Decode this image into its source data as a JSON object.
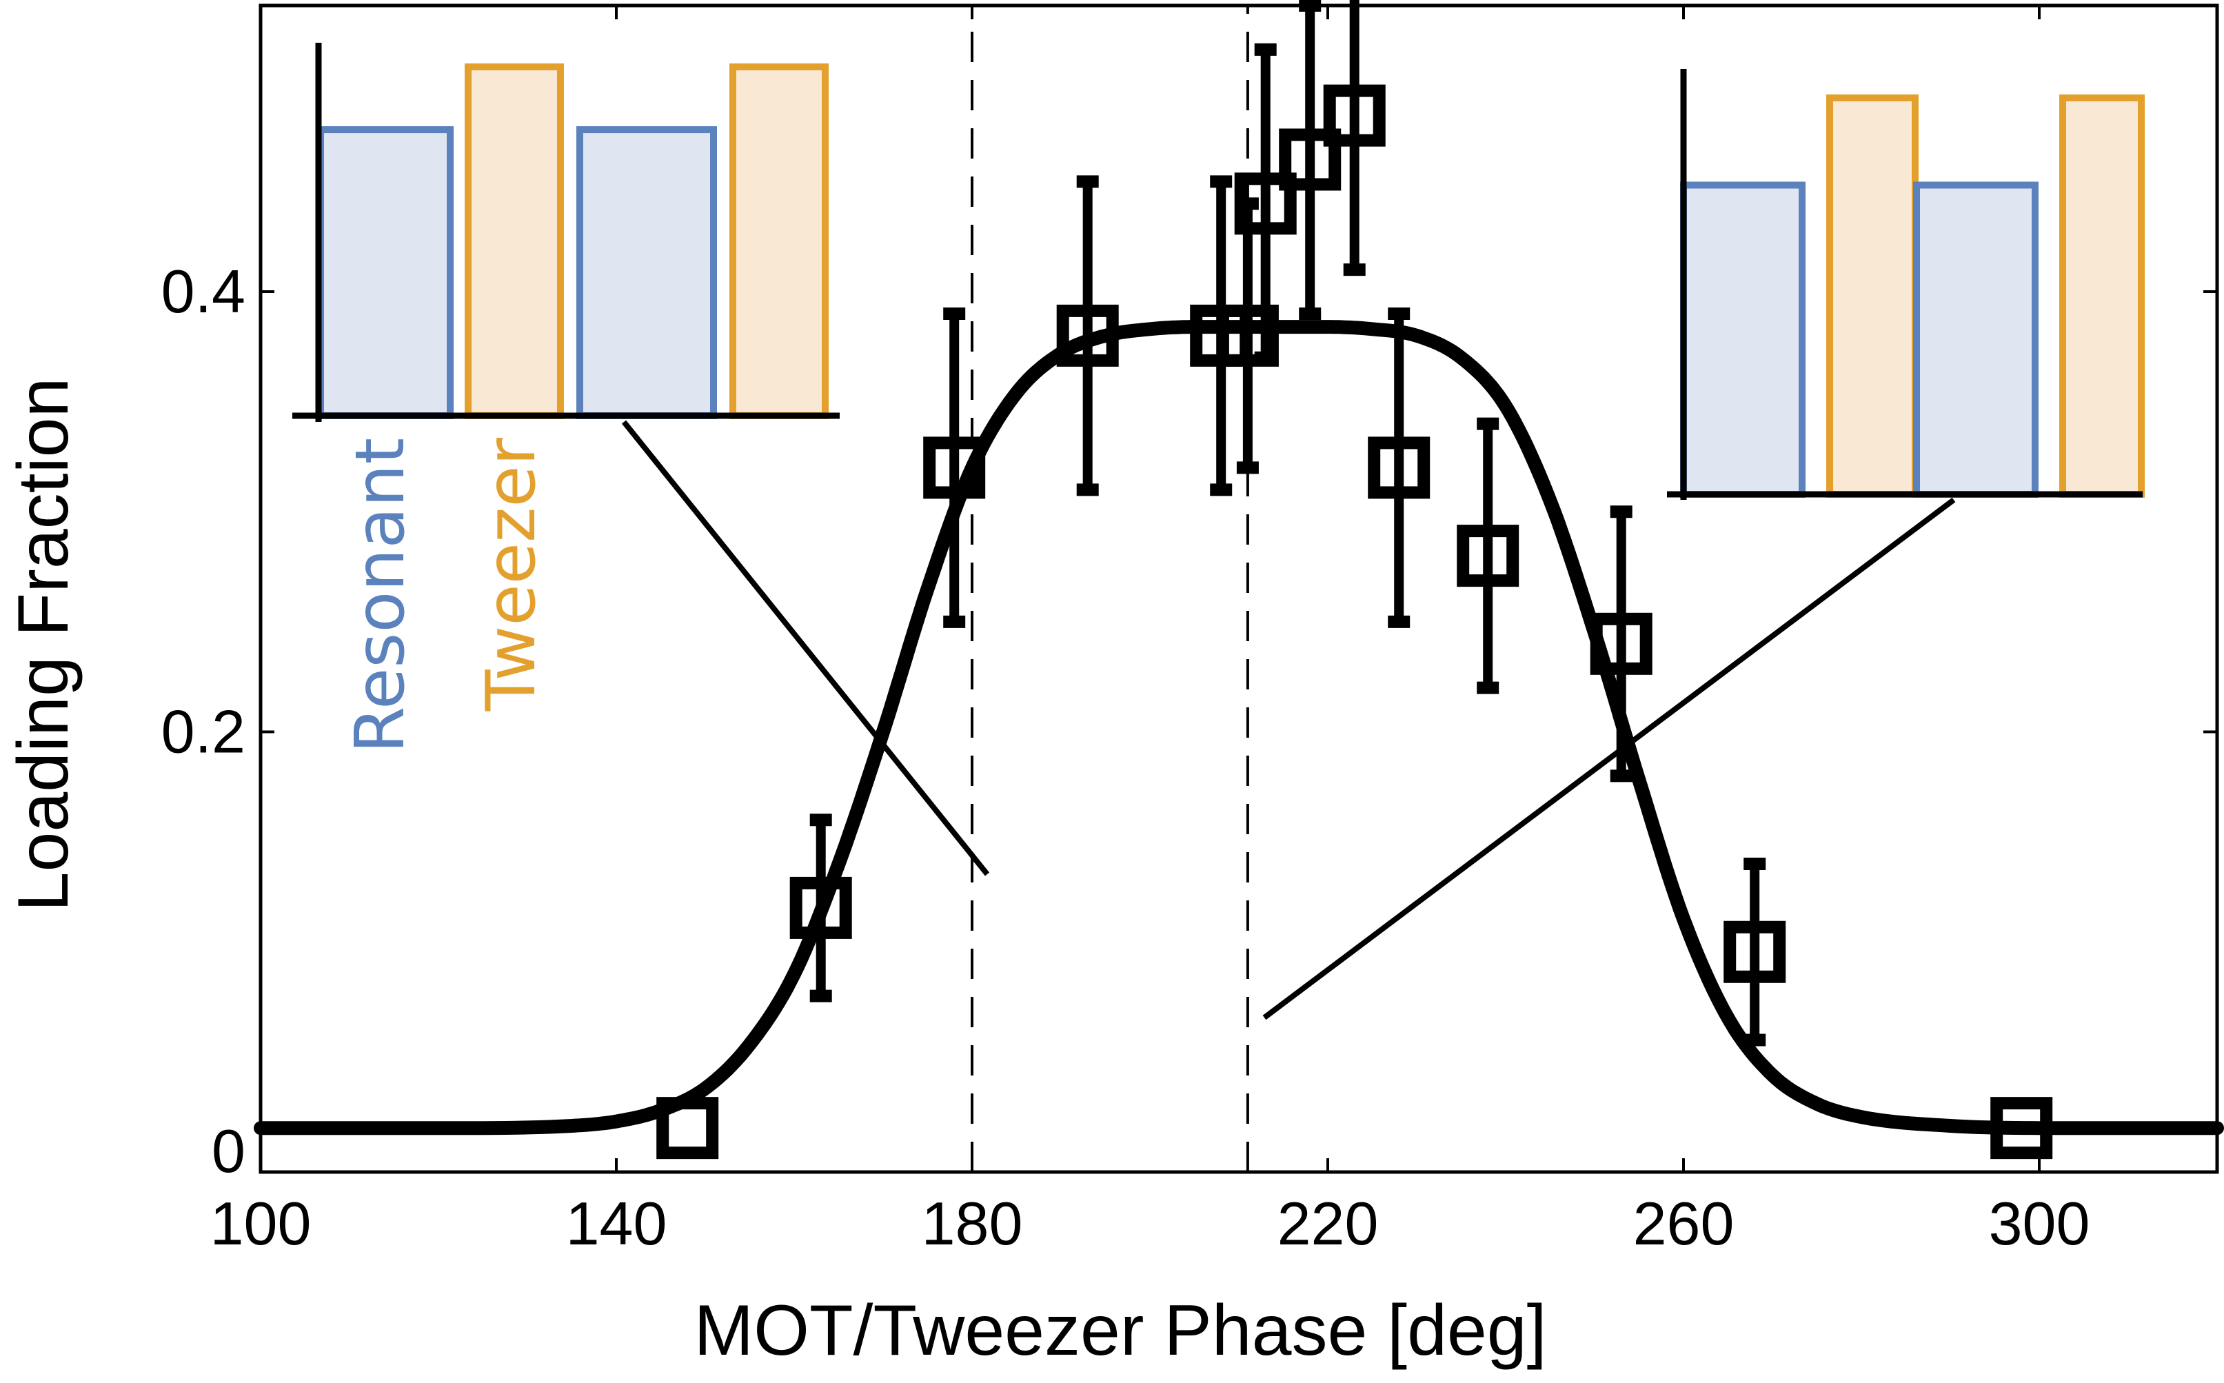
{
  "chart_data": {
    "type": "scatter",
    "xlabel": "MOT/Tweezer Phase [deg]",
    "ylabel": "Loading Fraction",
    "xlim": [
      100,
      320
    ],
    "ylim": [
      0,
      0.53
    ],
    "xticks": [
      100,
      140,
      180,
      220,
      260,
      300
    ],
    "yticks": [
      0,
      0.2,
      0.4
    ],
    "ytick_labels": [
      "0",
      "0.2",
      "0.4"
    ],
    "grid": false,
    "series": [
      {
        "kind": "points_with_error_bars",
        "marker": "open-square",
        "color": "#000000",
        "points": [
          {
            "x": 148,
            "y": 0.02,
            "yerr": 0.0
          },
          {
            "x": 163,
            "y": 0.12,
            "yerr": 0.04
          },
          {
            "x": 178,
            "y": 0.32,
            "yerr": 0.07
          },
          {
            "x": 193,
            "y": 0.38,
            "yerr": 0.07
          },
          {
            "x": 208,
            "y": 0.38,
            "yerr": 0.07
          },
          {
            "x": 211,
            "y": 0.38,
            "yerr": 0.06
          },
          {
            "x": 213,
            "y": 0.44,
            "yerr": 0.07
          },
          {
            "x": 218,
            "y": 0.46,
            "yerr": 0.07
          },
          {
            "x": 223,
            "y": 0.48,
            "yerr": 0.07
          },
          {
            "x": 228,
            "y": 0.32,
            "yerr": 0.07
          },
          {
            "x": 238,
            "y": 0.28,
            "yerr": 0.06
          },
          {
            "x": 253,
            "y": 0.24,
            "yerr": 0.06
          },
          {
            "x": 268,
            "y": 0.1,
            "yerr": 0.04
          },
          {
            "x": 298,
            "y": 0.02,
            "yerr": 0.0
          }
        ]
      },
      {
        "kind": "fit_curve",
        "color": "#000000",
        "x": [
          100,
          120,
          135,
          140,
          145,
          150,
          155,
          160,
          165,
          170,
          175,
          180,
          185,
          190,
          195,
          200,
          205,
          210,
          215,
          220,
          225,
          230,
          235,
          240,
          245,
          250,
          255,
          260,
          265,
          270,
          275,
          280,
          290,
          300,
          320
        ],
        "y": [
          0.02,
          0.02,
          0.021,
          0.023,
          0.028,
          0.038,
          0.058,
          0.09,
          0.14,
          0.2,
          0.265,
          0.32,
          0.354,
          0.372,
          0.38,
          0.383,
          0.384,
          0.384,
          0.384,
          0.384,
          0.383,
          0.38,
          0.37,
          0.348,
          0.305,
          0.245,
          0.178,
          0.115,
          0.07,
          0.044,
          0.031,
          0.025,
          0.021,
          0.02,
          0.02
        ]
      }
    ],
    "reference_lines": [
      {
        "orientation": "vertical",
        "x": 180,
        "style": "dashed"
      },
      {
        "orientation": "vertical",
        "x": 211,
        "style": "dashed"
      }
    ],
    "insets": [
      {
        "position": "top-left",
        "type": "bar",
        "labels": [
          "Resonant",
          "Tweezer"
        ],
        "colors": {
          "Resonant": "#5b82bd",
          "Tweezer": "#e3a02d"
        },
        "fills": {
          "Resonant": "#dfe5f1",
          "Tweezer": "#f9e9d4"
        },
        "bars": [
          "Resonant",
          "Tweezer",
          "Resonant",
          "Tweezer"
        ],
        "values": [
          0.82,
          1.0,
          0.82,
          1.0
        ],
        "pointer_to_x": 181
      },
      {
        "position": "top-right",
        "type": "bar",
        "bars": [
          "Resonant",
          "Tweezer",
          "Resonant",
          "Tweezer"
        ],
        "values": [
          0.78,
          1.0,
          0.78,
          1.0
        ],
        "pointer_to_x": 212
      }
    ]
  }
}
